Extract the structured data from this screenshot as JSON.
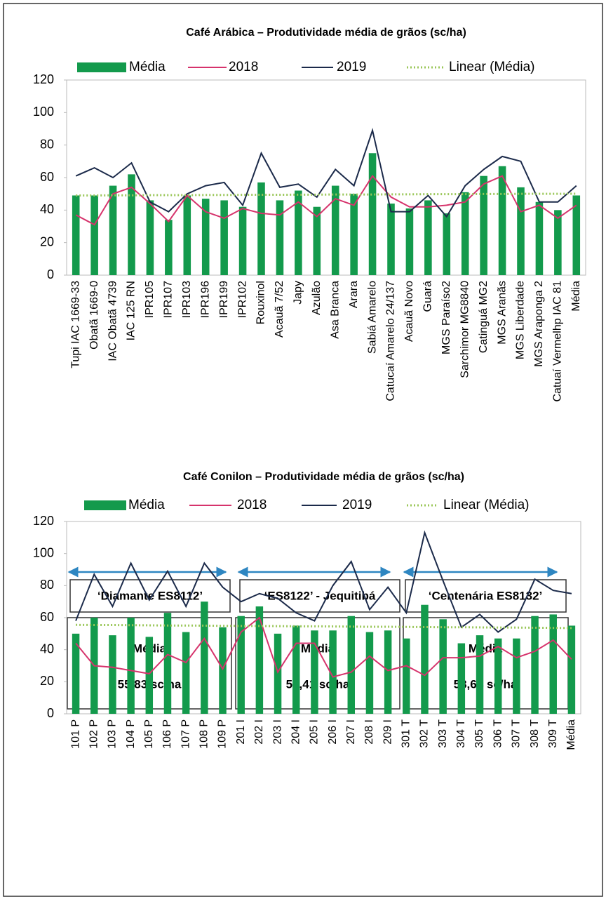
{
  "chart_data": [
    {
      "type": "bar",
      "title": "Café Arábica – Produtividade média de grãos (sc/ha)",
      "categories": [
        "Tupi IAC 1669-33",
        "Obatã 1669-0",
        "IAC Obatã 4739",
        "IAC 125 RN",
        "IPR105",
        "IPR107",
        "IPR103",
        "IPR196",
        "IPR199",
        "IPR102",
        "Rouxinol",
        "Acauã 7/52",
        "Japy",
        "Azulão",
        "Asa Branca",
        "Arara",
        "Sabiá Amarelo",
        "Catucaí Amarelo 24/137",
        "Acauã Novo",
        "Guará",
        "MGS Paraíso2",
        "Sarchimor MG8840",
        "Catinguá MG2",
        "MGS Aranãs",
        "MGS Liberdade",
        "MGS Araponga 2",
        "Catuaí Vermelhp IAC 81",
        "Média"
      ],
      "series": [
        {
          "name": "Média",
          "style": "bar",
          "color": "#139a4c",
          "values": [
            49,
            49,
            55,
            62,
            46,
            34,
            49,
            47,
            46,
            42,
            57,
            46,
            52,
            42,
            55,
            50,
            75,
            44,
            41,
            46,
            38,
            51,
            61,
            67,
            54,
            45,
            40,
            49
          ]
        },
        {
          "name": "2018",
          "style": "line",
          "color": "#d6336c",
          "values": [
            37,
            31,
            50,
            54,
            44,
            33,
            49,
            39,
            35,
            41,
            38,
            37,
            45,
            36,
            47,
            43,
            61,
            48,
            42,
            42,
            43,
            45,
            56,
            61,
            39,
            43,
            35,
            43
          ]
        },
        {
          "name": "2019",
          "style": "line",
          "color": "#1b2a4a",
          "values": [
            61,
            66,
            60,
            69,
            45,
            39,
            50,
            55,
            57,
            43,
            75,
            54,
            56,
            48,
            65,
            55,
            89,
            39,
            39,
            49,
            36,
            55,
            65,
            73,
            70,
            45,
            45,
            55
          ]
        },
        {
          "name": "Linear (Média)",
          "style": "dotted",
          "color": "#9bc75a",
          "values": [
            49.0,
            49.0,
            49.1,
            49.1,
            49.2,
            49.2,
            49.2,
            49.3,
            49.3,
            49.4,
            49.4,
            49.4,
            49.5,
            49.5,
            49.6,
            49.6,
            49.6,
            49.7,
            49.7,
            49.8,
            49.8,
            49.8,
            49.9,
            49.9,
            50.0,
            50.0,
            50.0,
            50.1
          ]
        }
      ],
      "ylim": [
        0,
        120
      ],
      "yticks": [
        0,
        20,
        40,
        60,
        80,
        100,
        120
      ],
      "grid": false,
      "legend": "top"
    },
    {
      "type": "bar",
      "title": "Café Conilon – Produtividade média de grãos (sc/ha)",
      "categories": [
        "101 P",
        "102 P",
        "103 P",
        "104 P",
        "105 P",
        "106 P",
        "107 P",
        "108 P",
        "109 P",
        "201 I",
        "202 I",
        "203 I",
        "204 I",
        "205 I",
        "206 I",
        "207 I",
        "208 I",
        "209 I",
        "301 T",
        "302 T",
        "303 T",
        "304 T",
        "305 T",
        "306 T",
        "307 T",
        "308 T",
        "309 T",
        "Média"
      ],
      "series": [
        {
          "name": "Média",
          "style": "bar",
          "color": "#139a4c",
          "values": [
            50,
            60,
            49,
            60,
            48,
            63,
            51,
            70,
            54,
            61,
            67,
            50,
            55,
            52,
            52,
            61,
            51,
            52,
            47,
            68,
            59,
            44,
            49,
            47,
            47,
            61,
            62,
            55
          ]
        },
        {
          "name": "2018",
          "style": "line",
          "color": "#d6336c",
          "values": [
            44,
            30,
            29,
            27,
            25,
            37,
            32,
            47,
            28,
            51,
            60,
            26,
            44,
            44,
            23,
            26,
            36,
            27,
            30,
            24,
            35,
            35,
            36,
            42,
            35,
            39,
            46,
            34
          ]
        },
        {
          "name": "2019",
          "style": "line",
          "color": "#1b2a4a",
          "values": [
            58,
            87,
            67,
            94,
            71,
            89,
            67,
            94,
            79,
            70,
            75,
            72,
            63,
            58,
            80,
            95,
            65,
            79,
            63,
            113,
            83,
            54,
            62,
            51,
            59,
            84,
            77,
            75
          ]
        },
        {
          "name": "Linear (Média)",
          "style": "dotted",
          "color": "#9bc75a",
          "values": [
            55.5,
            55.4,
            55.4,
            55.3,
            55.2,
            55.1,
            55.1,
            55.0,
            54.9,
            54.8,
            54.8,
            54.7,
            54.6,
            54.6,
            54.5,
            54.4,
            54.3,
            54.3,
            54.2,
            54.1,
            54.0,
            54.0,
            53.9,
            53.8,
            53.8,
            53.7,
            53.6,
            53.5
          ]
        }
      ],
      "ylim": [
        0,
        120
      ],
      "yticks": [
        0,
        20,
        40,
        60,
        80,
        100,
        120
      ],
      "grid": false,
      "legend": "top"
    }
  ],
  "groups": [
    {
      "name": "‘Diamante ES8112’",
      "mean_label": "Média",
      "mean": "55,83 sc/ha"
    },
    {
      "name": "‘ES8122’ - Jequitibá",
      "mean_label": "Média",
      "mean": "55,41 sc/ha"
    },
    {
      "name": "‘Centenária ES8132’",
      "mean_label": "Média",
      "mean": "53,64 sc/ha"
    }
  ]
}
